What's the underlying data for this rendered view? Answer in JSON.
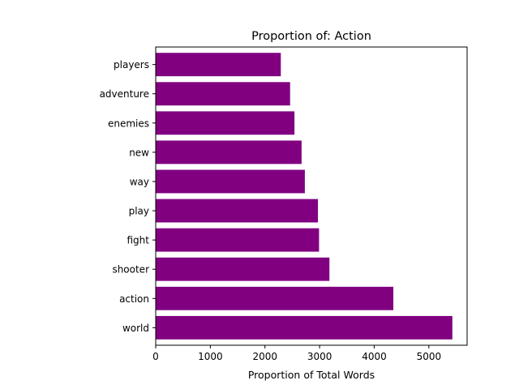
{
  "chart_data": {
    "type": "bar",
    "orientation": "horizontal",
    "title": "Proportion of: Action",
    "xlabel": "Proportion of Total Words",
    "ylabel": "",
    "categories": [
      "world",
      "action",
      "shooter",
      "fight",
      "play",
      "way",
      "new",
      "enemies",
      "adventure",
      "players"
    ],
    "values": [
      5430,
      4350,
      3180,
      2990,
      2970,
      2730,
      2670,
      2540,
      2460,
      2290
    ],
    "xlim": [
      0,
      5700
    ],
    "xticks": [
      0,
      1000,
      2000,
      3000,
      4000,
      5000
    ],
    "bar_color": "#800080",
    "grid": false,
    "legend": "none"
  }
}
